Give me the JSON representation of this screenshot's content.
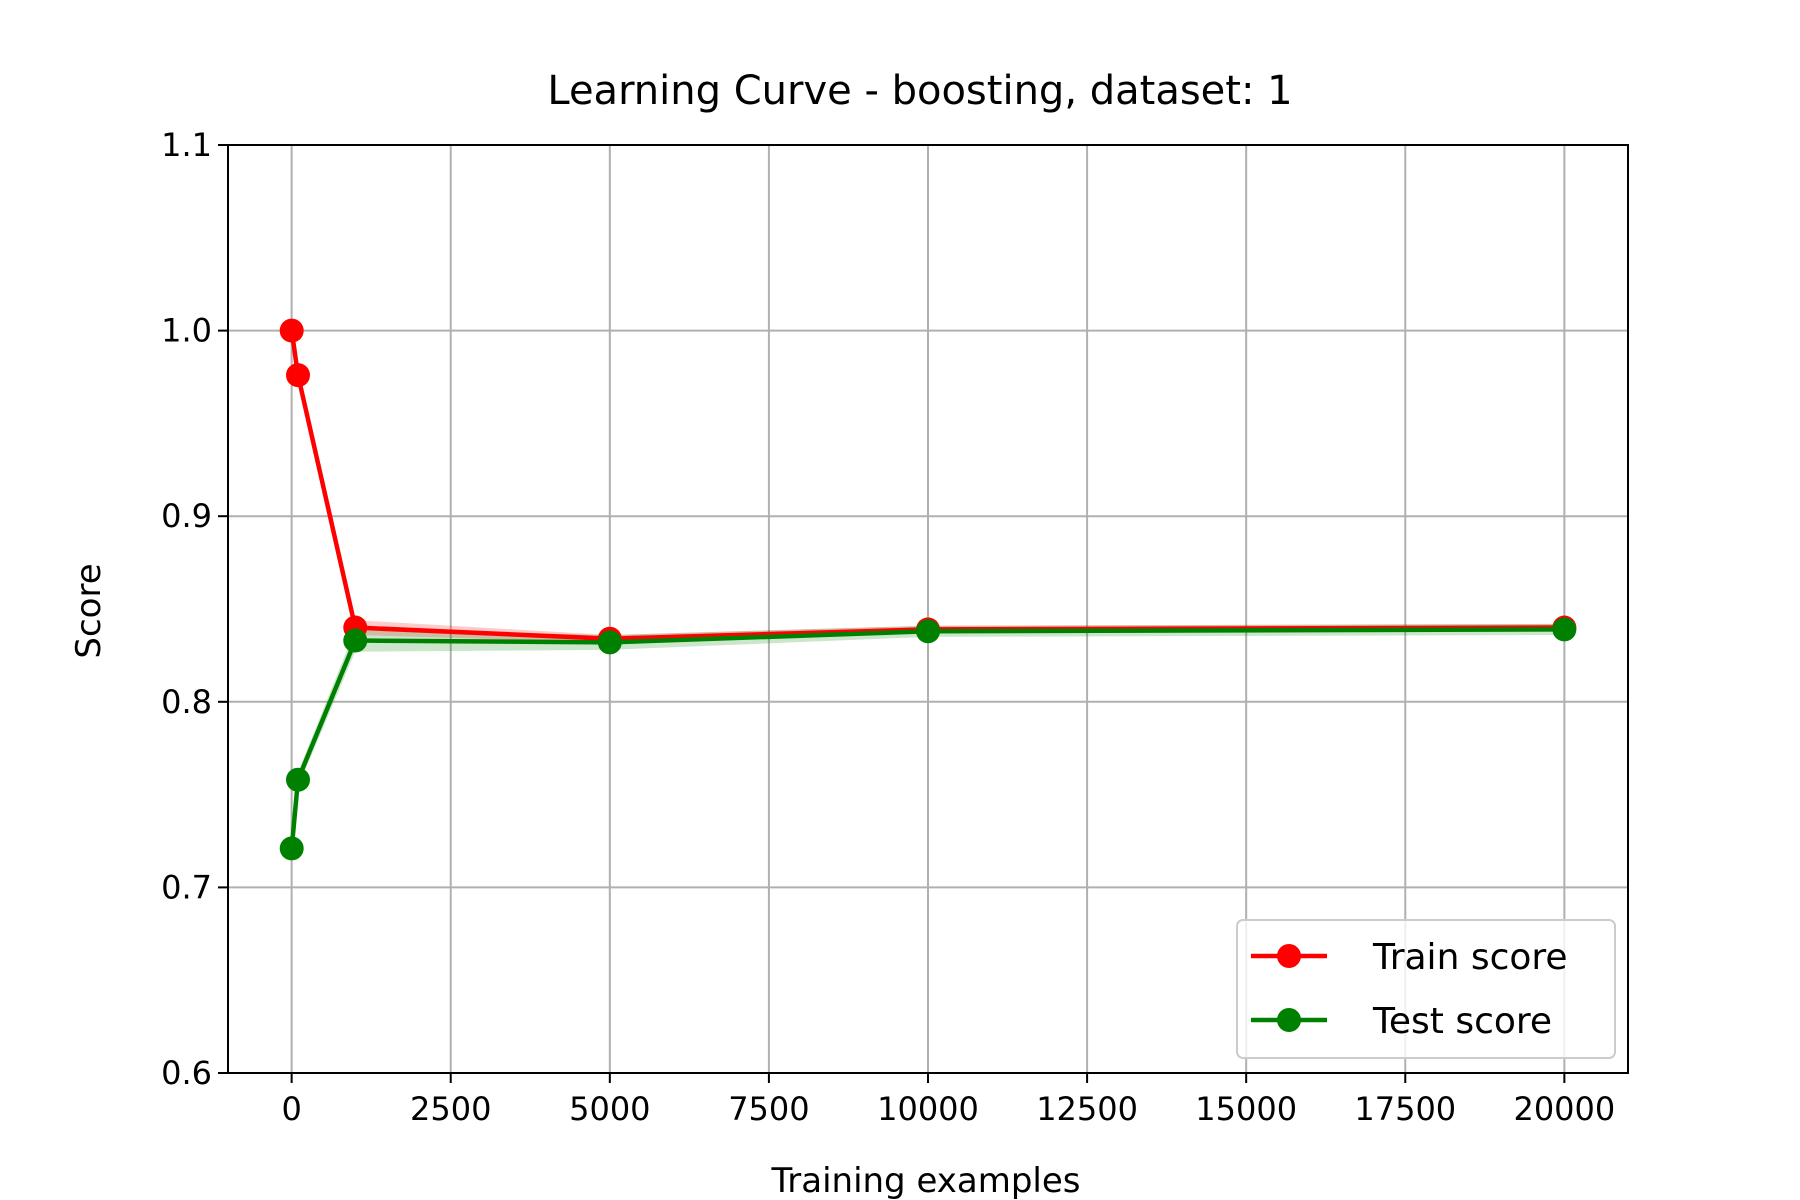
{
  "chart_data": {
    "type": "line",
    "title": "Learning Curve - boosting, dataset: 1",
    "xlabel": "Training examples",
    "ylabel": "Score",
    "xlim": [
      -1000,
      21000
    ],
    "ylim": [
      0.6,
      1.1
    ],
    "xticks": [
      0,
      2500,
      5000,
      7500,
      10000,
      12500,
      15000,
      17500,
      20000
    ],
    "yticks": [
      0.6,
      0.7,
      0.8,
      0.9,
      1.0,
      1.1
    ],
    "ytick_labels": [
      "0.6",
      "0.7",
      "0.8",
      "0.9",
      "1.0",
      "1.1"
    ],
    "grid": true,
    "legend_position": "lower-right",
    "x": [
      1,
      100,
      1000,
      5000,
      10000,
      20000
    ],
    "series": [
      {
        "name": "Train score",
        "color": "#ff0000",
        "marker": "circle",
        "values": [
          1.0,
          0.976,
          0.84,
          0.834,
          0.839,
          0.84
        ],
        "band": [
          0.0,
          0.002,
          0.004,
          0.002,
          0.002,
          0.002
        ]
      },
      {
        "name": "Test score",
        "color": "#008000",
        "marker": "circle",
        "values": [
          0.721,
          0.758,
          0.833,
          0.832,
          0.838,
          0.839
        ],
        "band": [
          0.002,
          0.004,
          0.006,
          0.004,
          0.003,
          0.003
        ]
      }
    ]
  }
}
